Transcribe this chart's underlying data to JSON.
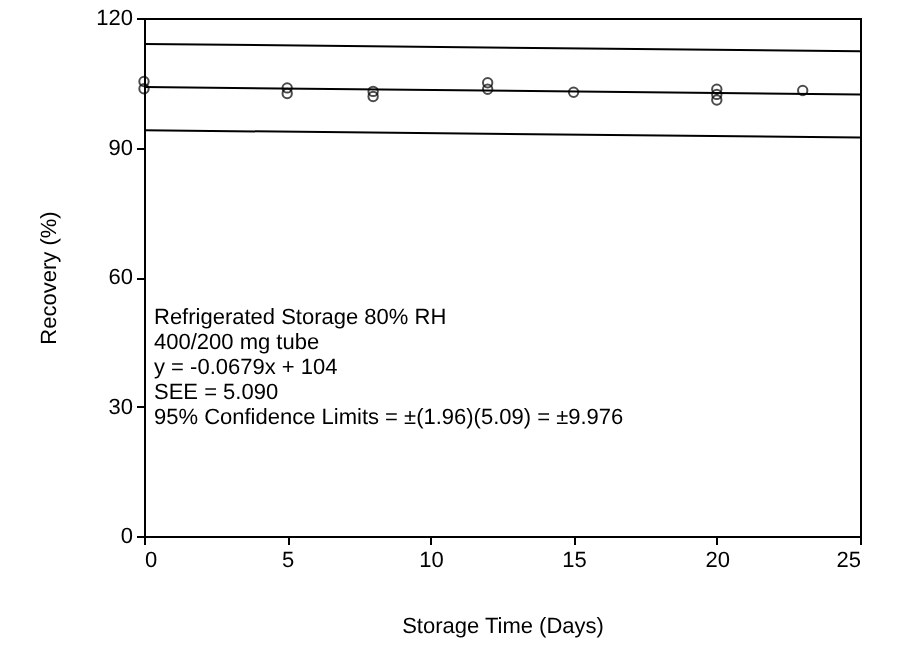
{
  "chart_data": {
    "type": "scatter",
    "xlabel": "Storage Time (Days)",
    "ylabel": "Recovery (%)",
    "xlim": [
      0,
      25
    ],
    "xticks": [
      0,
      5,
      10,
      15,
      20,
      25
    ],
    "ylim": [
      0,
      120
    ],
    "yticks": [
      0,
      30,
      60,
      90,
      120
    ],
    "grid": false,
    "series": [
      {
        "marker": "circle",
        "color": "#000000",
        "x": [
          0,
          0,
          5,
          5,
          8,
          8,
          12,
          12,
          15,
          20,
          20,
          20,
          23
        ],
        "values": [
          105.3,
          103.6,
          103.8,
          102.5,
          103,
          101.8,
          105,
          103.5,
          102.8,
          103.5,
          102.3,
          101,
          103.2
        ]
      },
      {
        "type": "line",
        "color": "#000000",
        "x": [
          0,
          25
        ],
        "values": [
          104,
          102.3
        ]
      },
      {
        "type": "line",
        "color": "#000000",
        "x": [
          0,
          25
        ],
        "values": [
          114,
          112.3
        ]
      },
      {
        "type": "line",
        "color": "#000000",
        "x": [
          0,
          25
        ],
        "values": [
          94,
          92.3
        ]
      }
    ],
    "annotations": [
      "Refrigerated Storage 80% RH",
      "400/200 mg tube",
      "y = -0.0679x + 104",
      "SEE = 5.090",
      "95% Confidence Limits = ±(1.96)(5.09) = ±9.976"
    ]
  }
}
